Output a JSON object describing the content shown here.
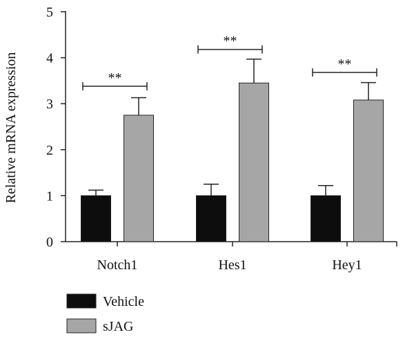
{
  "chart_data": {
    "type": "bar",
    "title": "",
    "xlabel": "",
    "ylabel": "Relative mRNA expression",
    "ylim": [
      0,
      5
    ],
    "yticks": [
      0,
      1,
      2,
      3,
      4,
      5
    ],
    "categories": [
      "Notch1",
      "Hes1",
      "Hey1"
    ],
    "series": [
      {
        "name": "Vehicle",
        "color": "#0d0d0d",
        "values": [
          1.0,
          1.0,
          1.0
        ],
        "errors": [
          0.12,
          0.25,
          0.22
        ]
      },
      {
        "name": "sJAG",
        "color": "#a6a6a6",
        "values": [
          2.75,
          3.45,
          3.08
        ],
        "errors": [
          0.38,
          0.52,
          0.38
        ]
      }
    ],
    "significance": [
      {
        "category": "Notch1",
        "label": "**",
        "y": 3.38
      },
      {
        "category": "Hes1",
        "label": "**",
        "y": 4.18
      },
      {
        "category": "Hey1",
        "label": "**",
        "y": 3.68
      }
    ],
    "grid": false,
    "legend_position": "bottom-left"
  }
}
